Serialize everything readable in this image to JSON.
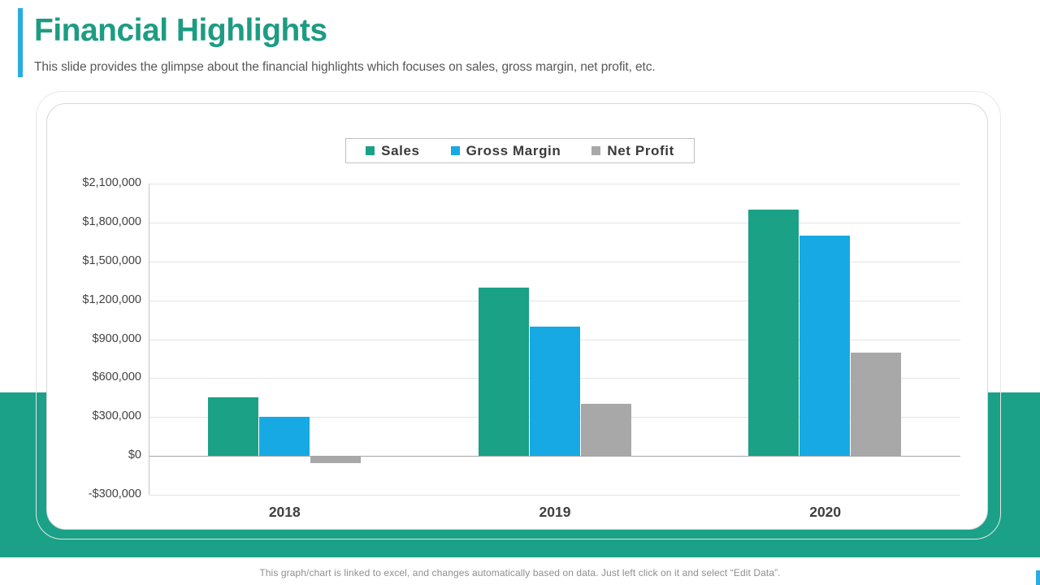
{
  "header": {
    "title": "Financial Highlights",
    "subtitle": "This slide provides the glimpse about the financial highlights which focuses on sales, gross margin, net profit, etc."
  },
  "footer": {
    "note": "This graph/chart is linked to excel, and changes automatically based on data. Just left click on it and select “Edit Data”."
  },
  "colors": {
    "teal": "#1aa186",
    "blue": "#16a9e4",
    "gray": "#a8a8a8",
    "accent_blue": "#29ace2",
    "band_teal": "#1aa188",
    "title_teal": "#1d9c83"
  },
  "chart_data": {
    "type": "bar",
    "categories": [
      "2018",
      "2019",
      "2020"
    ],
    "series": [
      {
        "name": "Sales",
        "color": "#1aa186",
        "values": [
          450000,
          1300000,
          1900000
        ]
      },
      {
        "name": "Gross Margin",
        "color": "#16a9e4",
        "values": [
          300000,
          1000000,
          1700000
        ]
      },
      {
        "name": "Net Profit",
        "color": "#a8a8a8",
        "values": [
          -50000,
          400000,
          800000
        ]
      }
    ],
    "y_ticks": [
      "$2,100,000",
      "$1,800,000",
      "$1,500,000",
      "$1,200,000",
      "$900,000",
      "$600,000",
      "$300,000",
      "$0",
      "-$300,000"
    ],
    "y_tick_values": [
      2100000,
      1800000,
      1500000,
      1200000,
      900000,
      600000,
      300000,
      0,
      -300000
    ],
    "ylim": [
      -300000,
      2100000
    ],
    "grid": true,
    "legend_position": "top-center"
  }
}
